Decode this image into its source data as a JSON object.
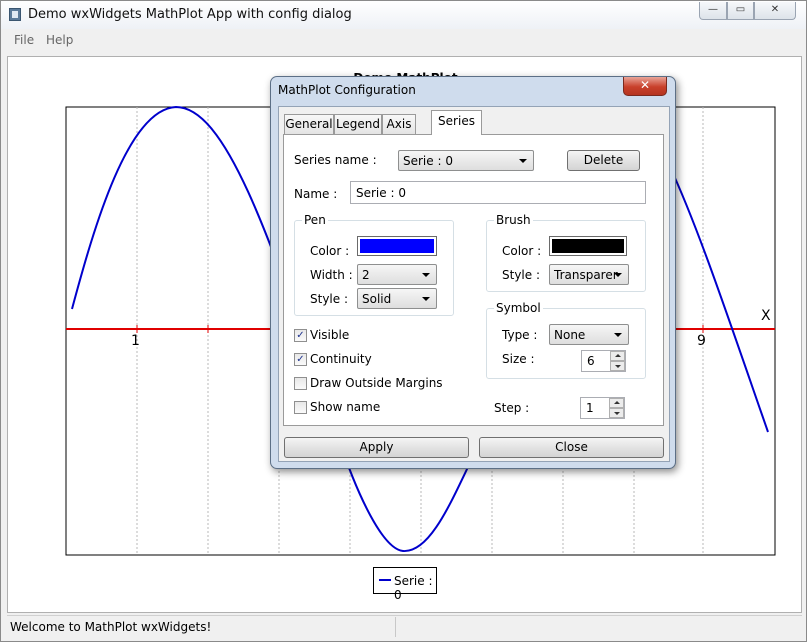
{
  "window": {
    "title": "Demo wxWidgets MathPlot App with config dialog",
    "controls": {
      "minimize": "—",
      "maximize": "▭",
      "close": "✕"
    }
  },
  "menu": {
    "file": "File",
    "help": "Help"
  },
  "plot": {
    "title": "Demo MathPlot",
    "x_axis_name": "X",
    "x_ticks": {
      "t1": "1",
      "t9": "9"
    },
    "legend_label": "Serie : 0",
    "series_color": "#0000cc",
    "axis_color": "#e00000"
  },
  "status": {
    "text": "Welcome to MathPlot wxWidgets!"
  },
  "dialog": {
    "title": "MathPlot Configuration",
    "close_label": "✕",
    "tabs": {
      "general": "General",
      "legend": "Legend",
      "axis": "Axis",
      "series": "Series"
    },
    "series": {
      "series_name_label": "Series name :",
      "series_name_value": "Serie : 0",
      "delete_label": "Delete",
      "name_label": "Name :",
      "name_value": "Serie : 0",
      "pen": {
        "caption": "Pen",
        "color_label": "Color :",
        "color_value": "#0000ff",
        "width_label": "Width :",
        "width_value": "2",
        "style_label": "Style :",
        "style_value": "Solid"
      },
      "brush": {
        "caption": "Brush",
        "color_label": "Color :",
        "color_value": "#000000",
        "style_label": "Style :",
        "style_value": "Transparer"
      },
      "symbol": {
        "caption": "Symbol",
        "type_label": "Type :",
        "type_value": "None",
        "size_label": "Size :",
        "size_value": "6"
      },
      "checkboxes": {
        "visible": {
          "label": "Visible",
          "checked": true
        },
        "continuity": {
          "label": "Continuity",
          "checked": true
        },
        "draw_outside_margins": {
          "label": "Draw Outside Margins",
          "checked": false
        },
        "show_name": {
          "label": "Show name",
          "checked": false
        }
      },
      "step_label": "Step :",
      "step_value": "1"
    },
    "apply_label": "Apply",
    "close_button_label": "Close"
  }
}
